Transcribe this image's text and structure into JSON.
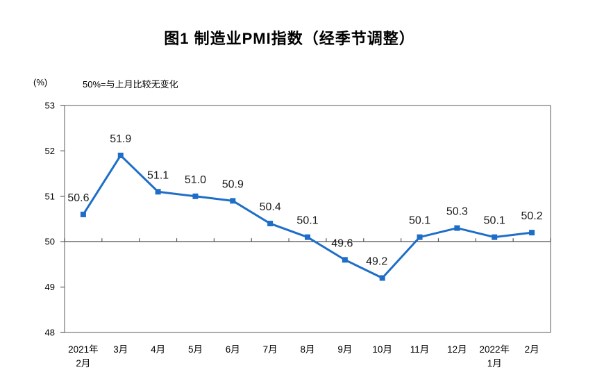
{
  "header": {
    "title": "图1 制造业PMI指数（经季节调整）"
  },
  "chart_data": {
    "type": "line",
    "title": "图1 制造业PMI指数（经季节调整）",
    "unit_label": "(%)",
    "annotation": "50%=与上月比较无变化",
    "categories": [
      "2021年2月",
      "3月",
      "4月",
      "5月",
      "6月",
      "7月",
      "8月",
      "9月",
      "10月",
      "11月",
      "12月",
      "2022年1月",
      "2月"
    ],
    "category_label_lines": [
      [
        "2021年",
        "2月"
      ],
      [
        "3月"
      ],
      [
        "4月"
      ],
      [
        "5月"
      ],
      [
        "6月"
      ],
      [
        "7月"
      ],
      [
        "8月"
      ],
      [
        "9月"
      ],
      [
        "10月"
      ],
      [
        "11月"
      ],
      [
        "12月"
      ],
      [
        "2022年",
        "1月"
      ],
      [
        "2月"
      ]
    ],
    "values": [
      50.6,
      51.9,
      51.1,
      51.0,
      50.9,
      50.4,
      50.1,
      49.6,
      49.2,
      50.1,
      50.3,
      50.1,
      50.2
    ],
    "data_labels": [
      "50.6",
      "51.9",
      "51.1",
      "51.0",
      "50.9",
      "50.4",
      "50.1",
      "49.6",
      "49.2",
      "50.1",
      "50.3",
      "50.1",
      "50.2"
    ],
    "xlabel": "",
    "ylabel": "(%)",
    "ylim": [
      48,
      53
    ],
    "yticks": [
      48,
      49,
      50,
      51,
      52,
      53
    ],
    "reference_line": 50,
    "line_color": "#1e6ec8",
    "marker": "square",
    "grid": false,
    "legend": "none",
    "colors": {
      "plot_border": "#808080",
      "category_axis": "#595959",
      "tick": "#595959",
      "label_text": "#1a1a1a",
      "axis_text": "#000000"
    }
  }
}
